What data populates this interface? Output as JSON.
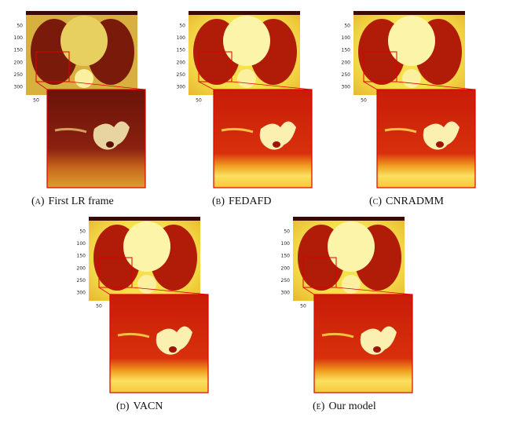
{
  "axis": {
    "yticks": [
      "50",
      "100",
      "150",
      "200",
      "250",
      "300"
    ],
    "xticks": [
      "50"
    ]
  },
  "panels": [
    {
      "label": "(a)",
      "caption": "First LR frame"
    },
    {
      "label": "(b)",
      "caption": "FEDAFD"
    },
    {
      "label": "(c)",
      "caption": "CNRADMM"
    },
    {
      "label": "(d)",
      "caption": "VACN"
    },
    {
      "label": "(e)",
      "caption": "Our model"
    }
  ]
}
